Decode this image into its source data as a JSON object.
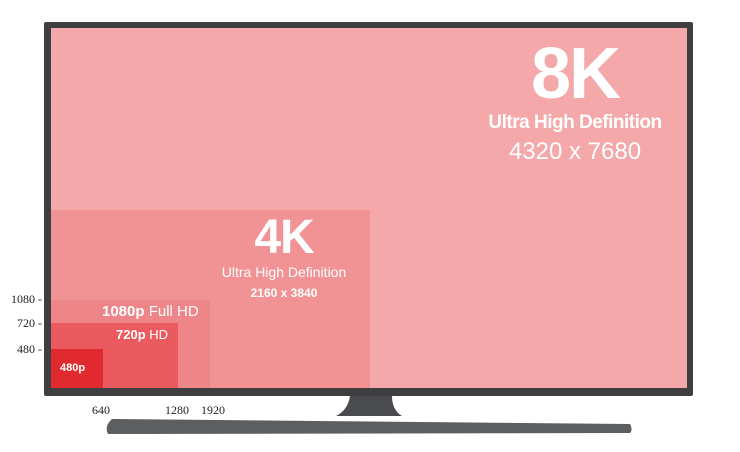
{
  "tiers": {
    "k8": {
      "title": "8K",
      "subtitle": "Ultra High Definition",
      "resolution": "4320 x 7680",
      "color": "#f4a8aa"
    },
    "k4": {
      "title": "4K",
      "subtitle": "Ultra High Definition",
      "resolution": "2160 x 3840",
      "color": "#f19294"
    },
    "fhd": {
      "bold": "1080p",
      "rest": " Full HD",
      "color": "#ee8588"
    },
    "hd": {
      "bold": "720p",
      "rest": " HD",
      "color": "#ea5a5e"
    },
    "sd": {
      "label": "480p",
      "color": "#e12a30"
    }
  },
  "y_axis": [
    "1080 -",
    "720 -",
    "480 -"
  ],
  "x_axis": [
    "640",
    "1280",
    "1920"
  ],
  "tv": {
    "frame_color": "#3f3f41",
    "stand_color": "#5c5e60"
  }
}
